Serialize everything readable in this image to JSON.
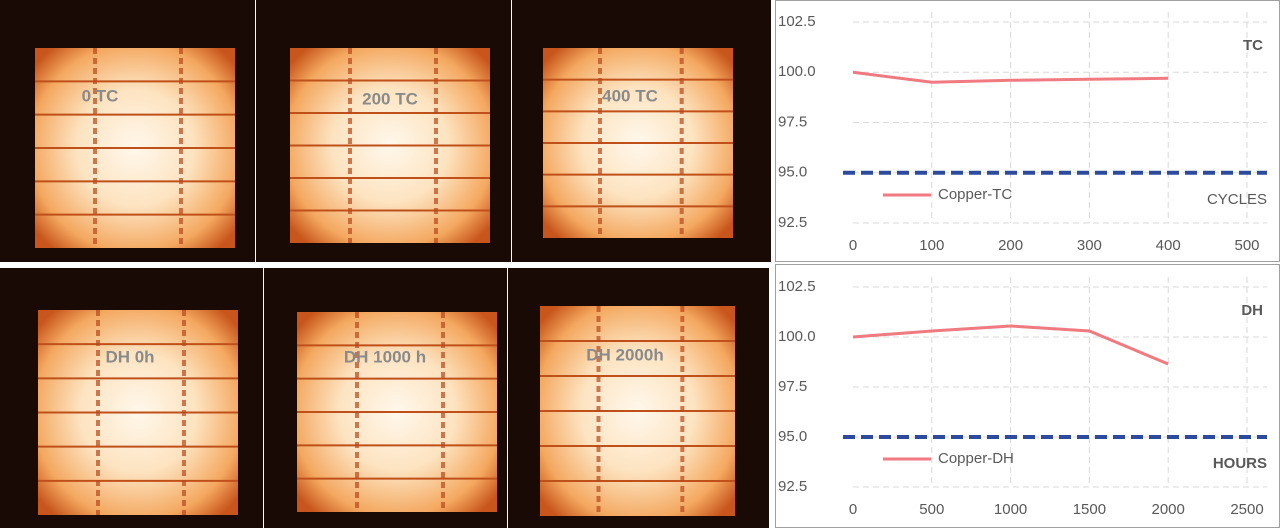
{
  "panels": [
    {
      "label": "0 TC"
    },
    {
      "label": "200  TC"
    },
    {
      "label": "400 TC"
    },
    {
      "label": "DH 0h"
    },
    {
      "label": "DH  1000 h"
    },
    {
      "label": "DH 2000h"
    }
  ],
  "chart_data": [
    {
      "type": "line",
      "title": "TC",
      "x_label": "CYCLES",
      "legend": "lower left",
      "grid": true,
      "x": [
        0,
        100,
        200,
        300,
        400
      ],
      "series": [
        {
          "name": "Copper-TC",
          "color": "#f07a80",
          "values": [
            100.0,
            99.5,
            99.6,
            99.65,
            99.7
          ]
        }
      ],
      "reference_line": {
        "value": 95,
        "color": "#2e4a9e"
      },
      "xlim": [
        0,
        500
      ],
      "xticks": [
        0,
        100,
        200,
        300,
        400,
        500
      ],
      "ylim": [
        92.5,
        102.5
      ],
      "yticks": [
        92.5,
        {
          "value": 95,
          "label": "95.0"
        },
        97.5,
        {
          "value": 100,
          "label": "100.0"
        },
        102.5
      ]
    },
    {
      "type": "line",
      "title": "DH",
      "x_label": "HOURS",
      "legend": "lower left",
      "grid": true,
      "x": [
        0,
        500,
        1000,
        1500,
        2000
      ],
      "series": [
        {
          "name": "Copper-DH",
          "color": "#f07a80",
          "values": [
            100.0,
            100.3,
            100.55,
            100.3,
            98.65
          ]
        }
      ],
      "reference_line": {
        "value": 95,
        "color": "#2e4a9e"
      },
      "xlim": [
        0,
        2500
      ],
      "xticks": [
        0,
        500,
        1000,
        1500,
        2000,
        2500
      ],
      "ylim": [
        92.5,
        102.5
      ],
      "yticks": [
        92.5,
        {
          "value": 95,
          "label": "95.0"
        },
        97.5,
        {
          "value": 100,
          "label": "100.0"
        },
        102.5
      ]
    }
  ]
}
